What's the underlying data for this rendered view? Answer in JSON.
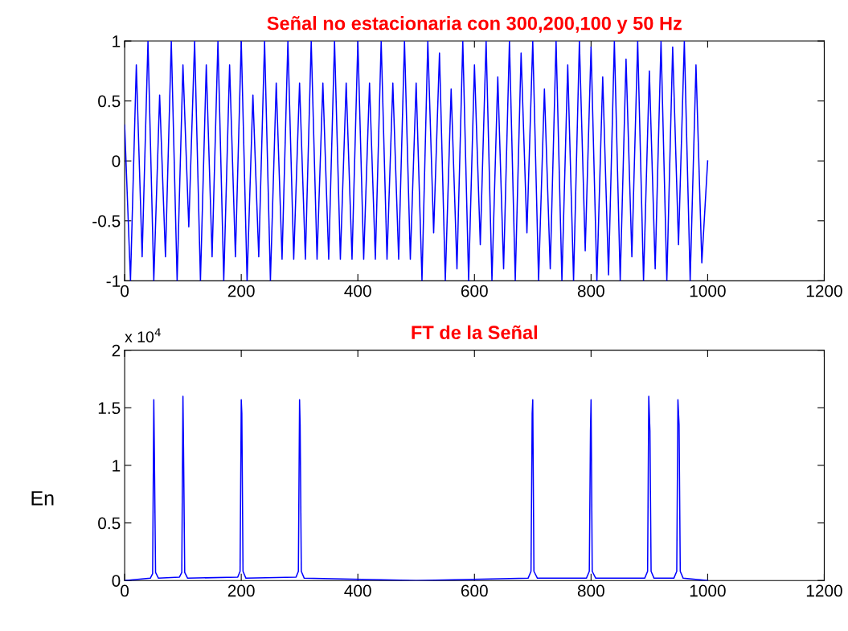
{
  "chart_data": [
    {
      "type": "line",
      "title": "Señal no estacionaria con 300,200,100 y 50 Hz",
      "xlim": [
        0,
        1200
      ],
      "xticks": [
        0,
        200,
        400,
        600,
        800,
        1000,
        1200
      ],
      "ylim": [
        -1,
        1
      ],
      "yticks": [
        -1,
        -0.5,
        0,
        0.5,
        1
      ],
      "grid": false,
      "series": [
        {
          "color": "#0000ff",
          "x": [
            0,
            10,
            20,
            30,
            40,
            50,
            60,
            70,
            80,
            90,
            100,
            110,
            120,
            130,
            140,
            150,
            160,
            170,
            180,
            190,
            200,
            210,
            220,
            230,
            240,
            250,
            260,
            270,
            280,
            290,
            300,
            310,
            320,
            330,
            340,
            350,
            360,
            370,
            380,
            390,
            400,
            410,
            420,
            430,
            440,
            450,
            460,
            470,
            480,
            490,
            500,
            510,
            520,
            530,
            540,
            550,
            560,
            570,
            580,
            590,
            600,
            610,
            620,
            630,
            640,
            650,
            660,
            670,
            680,
            690,
            700,
            710,
            720,
            730,
            740,
            750,
            760,
            770,
            780,
            790,
            800,
            810,
            820,
            830,
            840,
            850,
            860,
            870,
            880,
            890,
            900,
            910,
            920,
            930,
            940,
            950,
            960,
            970,
            980,
            990,
            1000
          ],
          "values": [
            0.3,
            -1,
            0.8,
            -0.8,
            1,
            -1,
            0.55,
            -0.8,
            1,
            -1,
            0.8,
            -0.55,
            1,
            -1,
            0.8,
            -0.8,
            1,
            -1,
            0.8,
            -0.8,
            1,
            -1,
            0.55,
            -0.8,
            1,
            -1,
            0.65,
            -0.82,
            1,
            -0.82,
            0.65,
            -0.82,
            1,
            -0.82,
            0.65,
            -0.82,
            1,
            -0.82,
            0.65,
            -0.82,
            1,
            -0.82,
            0.65,
            -0.82,
            1,
            -0.82,
            0.65,
            -0.82,
            1,
            -0.82,
            0.65,
            -1,
            1,
            -0.6,
            0.9,
            -1,
            0.6,
            -0.9,
            1,
            -1,
            0.8,
            -0.7,
            1,
            -1,
            0.7,
            -0.9,
            1,
            -1,
            0.9,
            -0.6,
            1,
            -1,
            0.6,
            -0.9,
            1,
            -1,
            0.8,
            -1,
            1,
            -0.75,
            0.95,
            -1,
            0.7,
            -0.95,
            1,
            -1,
            0.85,
            -0.8,
            1,
            -1,
            0.75,
            -0.9,
            1,
            -1,
            0.95,
            -0.7,
            1,
            -1,
            0.8,
            -0.85,
            0
          ]
        }
      ]
    },
    {
      "type": "line",
      "title": "FT de la Señal",
      "xlim": [
        0,
        1200
      ],
      "xticks": [
        0,
        200,
        400,
        600,
        800,
        1000,
        1200
      ],
      "ylim": [
        0,
        2
      ],
      "yticks": [
        0,
        0.5,
        1,
        1.5,
        2
      ],
      "grid": false,
      "annotations": [
        "x 10$^{4}$",
        "En"
      ],
      "series": [
        {
          "color": "#0000ff",
          "x": [
            0,
            44,
            48,
            50,
            51,
            53,
            58,
            94,
            98,
            100,
            101,
            103,
            108,
            194,
            198,
            200,
            201,
            203,
            208,
            294,
            298,
            300,
            301,
            303,
            308,
            500,
            692,
            697,
            699,
            700,
            702,
            708,
            792,
            797,
            799,
            800,
            802,
            808,
            892,
            897,
            899,
            901,
            903,
            908,
            942,
            947,
            949,
            951,
            953,
            958,
            1000
          ],
          "values": [
            0,
            0.02,
            0.06,
            1.57,
            1.1,
            0.07,
            0.02,
            0.03,
            0.07,
            1.6,
            1.15,
            0.07,
            0.02,
            0.03,
            0.08,
            1.57,
            1.45,
            0.08,
            0.02,
            0.03,
            0.08,
            1.57,
            1.35,
            0.08,
            0.02,
            0,
            0.02,
            0.08,
            1.45,
            1.57,
            0.08,
            0.02,
            0.02,
            0.08,
            1.3,
            1.57,
            0.08,
            0.02,
            0.02,
            0.08,
            1.6,
            1.3,
            0.08,
            0.02,
            0.02,
            0.08,
            1.57,
            1.35,
            0.08,
            0.02,
            0
          ]
        }
      ]
    }
  ]
}
